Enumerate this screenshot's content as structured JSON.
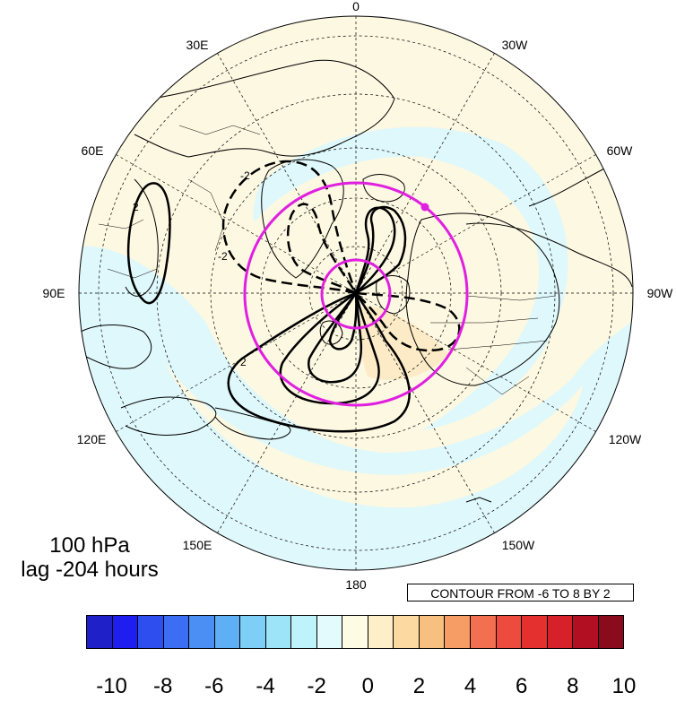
{
  "map": {
    "projection": "north-polar-stereographic",
    "longitude_labels": [
      {
        "text": "0",
        "lon": 0
      },
      {
        "text": "30E",
        "lon": 30
      },
      {
        "text": "60E",
        "lon": 60
      },
      {
        "text": "90E",
        "lon": 90
      },
      {
        "text": "120E",
        "lon": 120
      },
      {
        "text": "150E",
        "lon": 150
      },
      {
        "text": "180",
        "lon": 180
      },
      {
        "text": "150W",
        "lon": -150
      },
      {
        "text": "120W",
        "lon": -120
      },
      {
        "text": "90W",
        "lon": -90
      },
      {
        "text": "60W",
        "lon": -60
      },
      {
        "text": "30W",
        "lon": -30
      }
    ],
    "contour_labels": [
      "-2",
      "2",
      "-2",
      "2"
    ],
    "colors": {
      "highlight_circles": "#e020e0",
      "contours": "#000000",
      "light_blue_fill": "#dff8fb",
      "light_yellow_fill": "#fdf8e1",
      "light_orange_fill": "#fcebc6"
    }
  },
  "annotations": {
    "level": "100 hPa",
    "lag": "lag -204 hours",
    "contour_info": "CONTOUR FROM -6 TO 8 BY 2"
  },
  "colorbar": {
    "ticks": [
      "-10",
      "-8",
      "-6",
      "-4",
      "-2",
      "0",
      "2",
      "4",
      "6",
      "8",
      "10"
    ],
    "colors": [
      "#2020c8",
      "#1e1ef0",
      "#2e4ef0",
      "#3b6ef2",
      "#4b8ff4",
      "#5faff6",
      "#7dcff8",
      "#9ee4f9",
      "#bff3fb",
      "#e4fbfd",
      "#fdfbe4",
      "#fdf0c8",
      "#fbd9a0",
      "#f8c080",
      "#f69d66",
      "#f2704f",
      "#ee4b3f",
      "#e53030",
      "#d6202a",
      "#b30f23",
      "#8a0b1c"
    ]
  }
}
